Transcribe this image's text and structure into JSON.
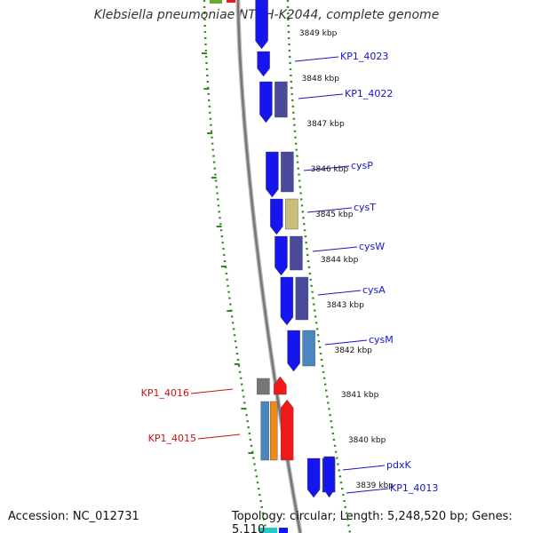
{
  "title": "Klebsiella pneumoniae NTUH-K2044, complete genome",
  "footer": {
    "accession": "Accession: NC_012731",
    "topology": "Topology: circular; Length: 5,248,520 bp; Genes: 5,110"
  },
  "colors": {
    "forward_gene": "#1515ee",
    "reverse_gene": "#ee1a1a",
    "forward_label": "#1515cc",
    "reverse_label": "#cc1111",
    "ruler": "#888888",
    "track_dashes": "#2e8b1a",
    "orthologs": [
      "#4a4a9a",
      "#c8c07a",
      "#4a86c0",
      "#ee8a1c",
      "#777777"
    ]
  },
  "positions_kbp": [
    {
      "label": "3849 kbp"
    },
    {
      "label": "3848 kbp"
    },
    {
      "label": "3847 kbp"
    },
    {
      "label": "3846 kbp"
    },
    {
      "label": "3845 kbp"
    },
    {
      "label": "3844 kbp"
    },
    {
      "label": "3843 kbp"
    },
    {
      "label": "3842 kbp"
    },
    {
      "label": "3841 kbp"
    },
    {
      "label": "3840 kbp"
    },
    {
      "label": "3839 kbp"
    }
  ],
  "forward_genes": [
    {
      "name": "KP1_4023",
      "ortholog_color": null
    },
    {
      "name": "KP1_4022",
      "ortholog_color": "#4a4a9a"
    },
    {
      "name": "cysP",
      "ortholog_color": "#4a4a9a"
    },
    {
      "name": "cysT",
      "ortholog_color": "#c8c07a"
    },
    {
      "name": "cysW",
      "ortholog_color": "#4a4a9a"
    },
    {
      "name": "cysA",
      "ortholog_color": "#4a4a9a"
    },
    {
      "name": "cysM",
      "ortholog_color": "#4a86c0"
    },
    {
      "name": "pdxK",
      "ortholog_color": "#1515ee"
    },
    {
      "name": "KP1_4013",
      "ortholog_color": null
    }
  ],
  "reverse_genes": [
    {
      "name": "KP1_4016",
      "ortholog_color": "#777777"
    },
    {
      "name": "KP1_4015",
      "ortholog_colors": [
        "#4a86c0",
        "#ee8a1c"
      ]
    }
  ]
}
